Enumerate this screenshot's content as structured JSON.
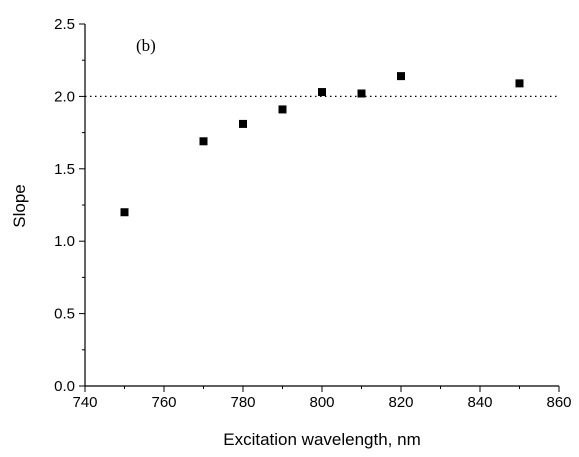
{
  "chart_data": {
    "type": "scatter",
    "panel_label": "(b)",
    "xlabel": "Excitation wavelength, nm",
    "ylabel": "Slope",
    "xlim": [
      740,
      860
    ],
    "ylim": [
      0.0,
      2.5
    ],
    "x_ticks": [
      740,
      760,
      780,
      800,
      820,
      840,
      860
    ],
    "x_tick_labels": [
      "740",
      "760",
      "780",
      "800",
      "820",
      "840",
      "860"
    ],
    "y_ticks": [
      0.0,
      0.5,
      1.0,
      1.5,
      2.0,
      2.5
    ],
    "y_tick_labels": [
      "0.0",
      "0.5",
      "1.0",
      "1.5",
      "2.0",
      "2.5"
    ],
    "reference_line": {
      "y": 2.0,
      "style": "dotted"
    },
    "marker": "square",
    "grid": false,
    "series": [
      {
        "x": [
          750,
          770,
          780,
          790,
          800,
          810,
          820,
          850
        ],
        "y": [
          1.2,
          1.69,
          1.81,
          1.91,
          2.03,
          2.02,
          2.14,
          2.09
        ]
      }
    ],
    "colors": {
      "marker": "#000000",
      "axis": "#000000"
    }
  }
}
